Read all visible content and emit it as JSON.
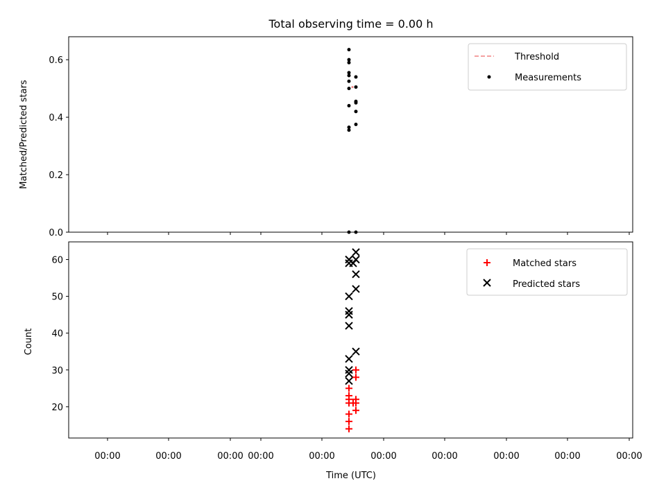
{
  "chart_data": [
    {
      "type": "scatter",
      "title": "Total observing time = 0.00 h",
      "ylabel": "Matched/Predicted stars",
      "ylim": [
        0,
        0.68
      ],
      "yticks": [
        "0.0",
        "0.2",
        "0.4",
        "0.6"
      ],
      "ytick_values": [
        0.0,
        0.2,
        0.4,
        0.6
      ],
      "legend": {
        "placement": "top-right",
        "entries": [
          {
            "label": "Threshold",
            "marker": "dashed-line",
            "color": "#f08080"
          },
          {
            "label": "Measurements",
            "marker": "dot",
            "color": "#000000"
          }
        ]
      },
      "series": [
        {
          "name": "Measurements",
          "color": "#000000",
          "points": [
            {
              "x": 0.0,
              "y": 0.635
            },
            {
              "x": 0.0,
              "y": 0.6
            },
            {
              "x": 0.0,
              "y": 0.59
            },
            {
              "x": 0.0,
              "y": 0.555
            },
            {
              "x": 0.0,
              "y": 0.545
            },
            {
              "x": 0.0,
              "y": 0.525
            },
            {
              "x": 0.0,
              "y": 0.5
            },
            {
              "x": 0.0,
              "y": 0.44
            },
            {
              "x": 0.0,
              "y": 0.365
            },
            {
              "x": 0.0,
              "y": 0.355
            },
            {
              "x": 0.0,
              "y": 0.0
            },
            {
              "x": 1.0,
              "y": 0.54
            },
            {
              "x": 1.0,
              "y": 0.505
            },
            {
              "x": 1.0,
              "y": 0.455
            },
            {
              "x": 1.0,
              "y": 0.45
            },
            {
              "x": 1.0,
              "y": 0.42
            },
            {
              "x": 1.0,
              "y": 0.375
            },
            {
              "x": 1.0,
              "y": 0.0
            }
          ]
        },
        {
          "name": "Threshold",
          "color": "#f08080",
          "points": [
            {
              "x": 0.5,
              "y": 0.505
            }
          ]
        }
      ]
    },
    {
      "type": "scatter",
      "xlabel": "Time (UTC)",
      "ylabel": "Count",
      "ylim": [
        11.5,
        64.8
      ],
      "yticks": [
        "20",
        "30",
        "40",
        "50",
        "60"
      ],
      "ytick_values": [
        20,
        30,
        40,
        50,
        60
      ],
      "xtick_labels": [
        "00:00",
        "00:00",
        "00:00",
        "00:00",
        "00:00",
        "00:00",
        "00:00",
        "00:00",
        "00:00",
        "00:00"
      ],
      "legend": {
        "placement": "top-right",
        "entries": [
          {
            "label": "Matched stars",
            "marker": "plus",
            "color": "#ff0000"
          },
          {
            "label": "Predicted stars",
            "marker": "x",
            "color": "#000000"
          }
        ]
      },
      "series": [
        {
          "name": "Matched stars",
          "color": "#ff0000",
          "points": [
            {
              "x": 0.0,
              "y": 25
            },
            {
              "x": 0.0,
              "y": 23
            },
            {
              "x": 0.0,
              "y": 22
            },
            {
              "x": 0.0,
              "y": 21
            },
            {
              "x": 0.0,
              "y": 18
            },
            {
              "x": 0.0,
              "y": 16
            },
            {
              "x": 0.0,
              "y": 14
            },
            {
              "x": 0.6,
              "y": 21
            },
            {
              "x": 1.0,
              "y": 30
            },
            {
              "x": 1.0,
              "y": 28
            },
            {
              "x": 1.0,
              "y": 22
            },
            {
              "x": 1.0,
              "y": 21
            },
            {
              "x": 1.0,
              "y": 19
            }
          ]
        },
        {
          "name": "Predicted stars",
          "color": "#000000",
          "points": [
            {
              "x": 0.0,
              "y": 60
            },
            {
              "x": 0.0,
              "y": 59
            },
            {
              "x": 0.0,
              "y": 50
            },
            {
              "x": 0.0,
              "y": 46
            },
            {
              "x": 0.0,
              "y": 45
            },
            {
              "x": 0.0,
              "y": 42
            },
            {
              "x": 0.0,
              "y": 33
            },
            {
              "x": 0.0,
              "y": 30
            },
            {
              "x": 0.0,
              "y": 29
            },
            {
              "x": 0.0,
              "y": 27
            },
            {
              "x": 0.6,
              "y": 59
            },
            {
              "x": 1.0,
              "y": 62
            },
            {
              "x": 1.0,
              "y": 60
            },
            {
              "x": 1.0,
              "y": 56
            },
            {
              "x": 1.0,
              "y": 52
            },
            {
              "x": 1.0,
              "y": 35
            }
          ]
        }
      ]
    }
  ]
}
